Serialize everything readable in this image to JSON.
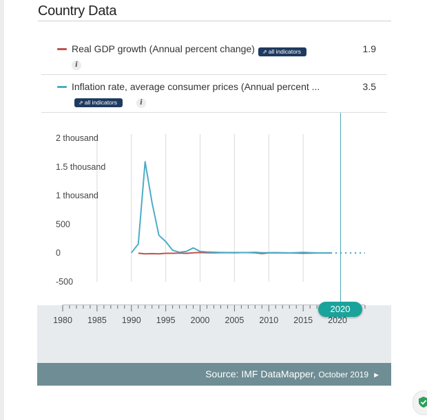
{
  "section": {
    "title": "Country Data"
  },
  "indicators": [
    {
      "label": "Real GDP growth (Annual percent change)",
      "value": "1.9",
      "color": "#c0504d",
      "link_label": "all indicators",
      "link_icon": "trend-icon",
      "info": "i"
    },
    {
      "label": "Inflation rate, average consumer prices (Annual percent ...",
      "value": "3.5",
      "color": "#4bacc6",
      "link_label": "all indicators",
      "link_icon": "trend-icon",
      "info": "i"
    }
  ],
  "timeline": {
    "selected_year": "2020",
    "tick_labels": [
      "1980",
      "1985",
      "1990",
      "1995",
      "2000",
      "2005",
      "2010",
      "2015",
      "2020"
    ]
  },
  "source": {
    "text": "Source: IMF DataMapper,",
    "date": "October 2019",
    "arrow": "►"
  },
  "chart_data": {
    "type": "line",
    "ylim": [
      -500,
      2000
    ],
    "xlim": [
      1980,
      2024
    ],
    "y_ticks": [
      2000,
      1500,
      1000,
      500,
      0,
      -500
    ],
    "y_tick_labels": [
      "2 thousand",
      "1.5 thousand",
      "1 thousand",
      "500",
      "0",
      "-500"
    ],
    "x_ticks": [
      1980,
      1985,
      1990,
      1995,
      2000,
      2005,
      2010,
      2015,
      2020
    ],
    "x_tick_labels": [
      "1980",
      "1985",
      "1990",
      "1995",
      "2000",
      "2005",
      "2010",
      "2015",
      "2020"
    ],
    "grid": "vertical",
    "series": [
      {
        "name": "Real GDP growth (Annual percent change)",
        "color": "#c0504d",
        "x": [
          1991,
          1992,
          1993,
          1994,
          1995,
          1996,
          1997,
          1998,
          1999,
          2000,
          2001,
          2002,
          2003,
          2004,
          2005,
          2006,
          2007,
          2008,
          2009,
          2010,
          2011,
          2012,
          2013,
          2014,
          2015,
          2016,
          2017,
          2018,
          2019
        ],
        "y": [
          -2,
          -13,
          -9,
          -13,
          -4,
          -4,
          1,
          -5,
          6,
          10,
          5,
          5,
          7,
          7,
          6,
          8,
          8,
          5,
          -8,
          4,
          4,
          3,
          2,
          1,
          -2,
          0,
          2,
          2,
          2
        ],
        "projection": {
          "x": [
            2019,
            2024
          ],
          "y": [
            2,
            2
          ]
        }
      },
      {
        "name": "Inflation rate, average consumer prices (Annual percent ...",
        "color": "#4bacc6",
        "x": [
          1990,
          1991,
          1992,
          1993,
          1994,
          1995,
          1996,
          1997,
          1998,
          1999,
          2000,
          2001,
          2002,
          2003,
          2004,
          2005,
          2006,
          2007,
          2008,
          2009,
          2010,
          2011,
          2012,
          2013,
          2014,
          2015,
          2016,
          2017,
          2018,
          2019
        ],
        "y": [
          5,
          160,
          1590,
          880,
          310,
          200,
          50,
          15,
          30,
          90,
          30,
          20,
          15,
          12,
          10,
          10,
          9,
          9,
          14,
          7,
          7,
          8,
          5,
          4,
          7,
          13,
          7,
          4,
          3,
          3
        ],
        "projection": {
          "x": [
            2019,
            2024
          ],
          "y": [
            3,
            3
          ]
        }
      }
    ]
  }
}
